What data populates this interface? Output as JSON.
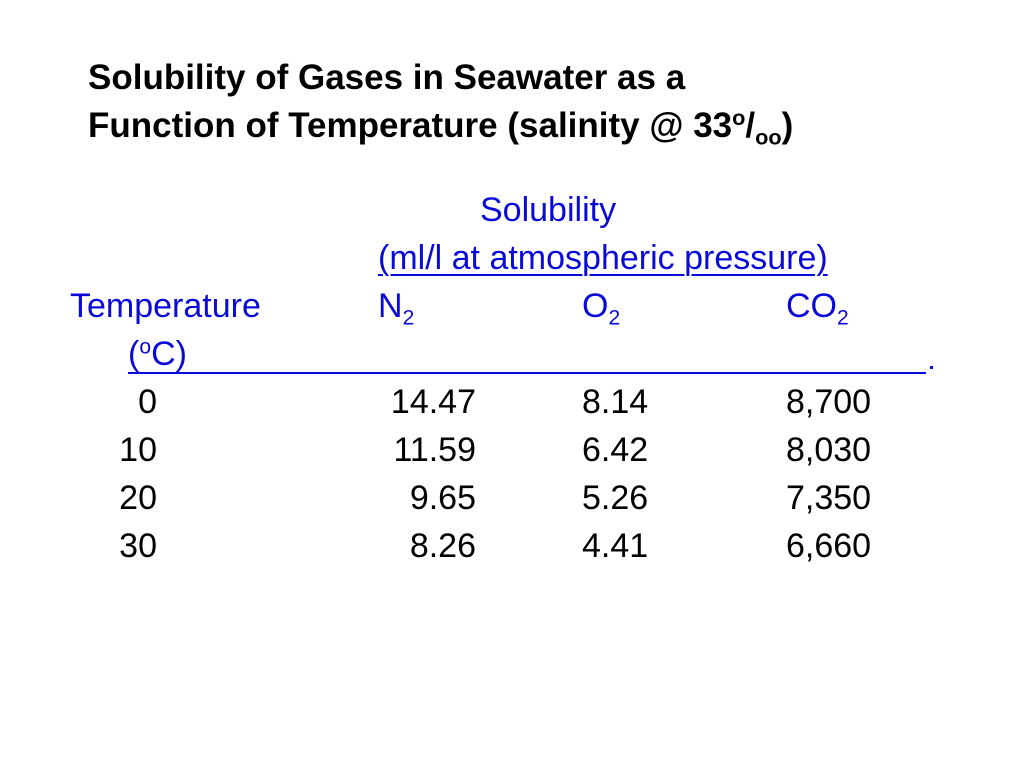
{
  "title": {
    "line1": "Solubility of Gases in Seawater as a",
    "line2_main": "Function of Temperature (salinity @ 33",
    "line2_sup": "o",
    "line2_slash": "/",
    "line2_sub": "oo",
    "line2_close": ")"
  },
  "table": {
    "group_heading": "Solubility",
    "units_heading": "(ml/l at atmospheric pressure)",
    "columns": {
      "temperature": {
        "label": "Temperature",
        "unit_open": "(",
        "unit_sup": "o",
        "unit_rest": "C)"
      },
      "n2": {
        "base": "N",
        "sub": "2"
      },
      "o2": {
        "base": "O",
        "sub": "2"
      },
      "co2": {
        "base": "CO",
        "sub": "2"
      }
    },
    "rule_end_mark": ".",
    "rows": [
      {
        "temperature": "0",
        "n2": "14.47",
        "o2": "8.14",
        "co2": "8,700"
      },
      {
        "temperature": "10",
        "n2": "11.59",
        "o2": "6.42",
        "co2": "8,030"
      },
      {
        "temperature": "20",
        "n2": "9.65",
        "o2": "5.26",
        "co2": "7,350"
      },
      {
        "temperature": "30",
        "n2": "8.26",
        "o2": "4.41",
        "co2": "6,660"
      }
    ]
  },
  "colors": {
    "accent_blue": "#0a0ad8",
    "text": "#000000",
    "background": "#ffffff"
  }
}
